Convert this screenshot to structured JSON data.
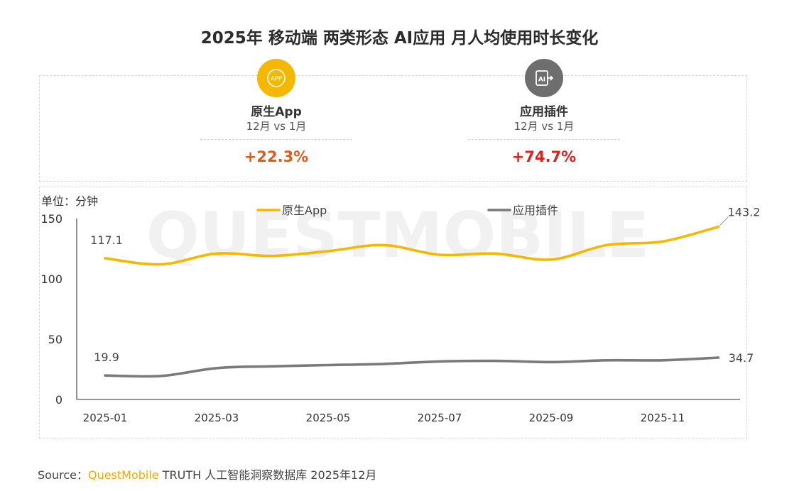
{
  "title": "2025年 移动端 两类形态 AI应用 月人均使用时长变化",
  "summary": [
    {
      "icon": "app-icon",
      "badge_text": "APP",
      "label": "原生App",
      "period": "12月 vs 1月",
      "change": "+22.3%",
      "color": "#f5b800",
      "change_color": "#e05a1c"
    },
    {
      "icon": "ai-plugin-icon",
      "badge_text": "AI",
      "label": "应用插件",
      "period": "12月 vs 1月",
      "change": "+74.7%",
      "color": "#6e6e6e",
      "change_color": "#e0201c"
    }
  ],
  "unit_label": "单位：分钟",
  "source": {
    "prefix": "Source：",
    "brand": "QuestMobile",
    "rest": " TRUTH 人工智能洞察数据库 2025年12月"
  },
  "watermark": "QUESTMOBILE",
  "chart_data": {
    "type": "line",
    "x": [
      "2025-01",
      "2025-02",
      "2025-03",
      "2025-04",
      "2025-05",
      "2025-06",
      "2025-07",
      "2025-08",
      "2025-09",
      "2025-10",
      "2025-11",
      "2025-12"
    ],
    "x_tick_labels": [
      "2025-01",
      "2025-03",
      "2025-05",
      "2025-07",
      "2025-09",
      "2025-11"
    ],
    "ylim": [
      0,
      150
    ],
    "y_ticks": [
      0,
      50,
      100,
      150
    ],
    "legend_position": "top-center",
    "series": [
      {
        "name": "原生App",
        "color": "#f5b800",
        "values": [
          117.1,
          112.0,
          121.0,
          119.0,
          123.0,
          128.0,
          120.0,
          121.0,
          116.0,
          128.0,
          131.0,
          143.2
        ],
        "labels": [
          {
            "index": 0,
            "text": "117.1"
          },
          {
            "index": 11,
            "text": "143.2"
          }
        ]
      },
      {
        "name": "应用插件",
        "color": "#7a7a7a",
        "values": [
          19.9,
          19.5,
          26.0,
          27.5,
          28.5,
          29.5,
          31.5,
          32.0,
          31.0,
          32.5,
          32.5,
          34.7
        ],
        "labels": [
          {
            "index": 0,
            "text": "19.9"
          },
          {
            "index": 11,
            "text": "34.7"
          }
        ]
      }
    ]
  }
}
